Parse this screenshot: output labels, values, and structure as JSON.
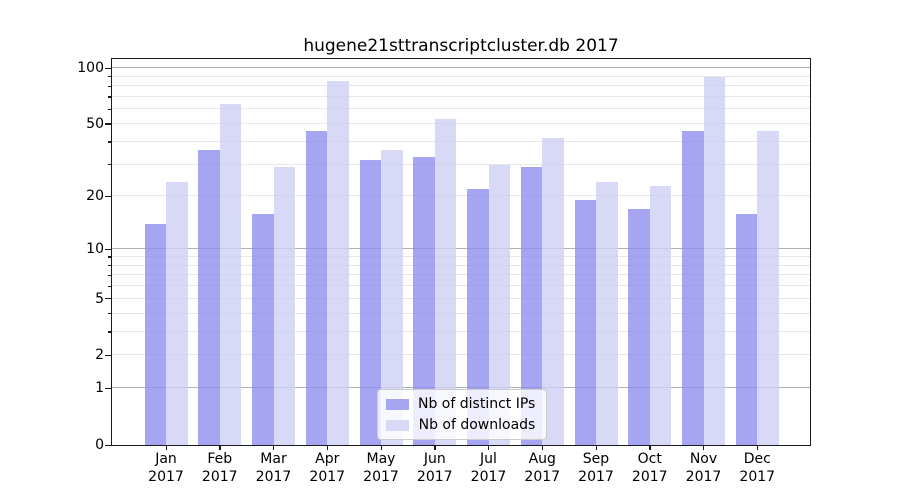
{
  "figure": {
    "title": "hugene21sttranscriptcluster.db 2017"
  },
  "chart_data": {
    "type": "bar",
    "title": "hugene21sttranscriptcluster.db 2017",
    "categories": [
      "Jan 2017",
      "Feb 2017",
      "Mar 2017",
      "Apr 2017",
      "May 2017",
      "Jun 2017",
      "Jul 2017",
      "Aug 2017",
      "Sep 2017",
      "Oct 2017",
      "Nov 2017",
      "Dec 2017"
    ],
    "series": [
      {
        "name": "Nb of distinct IPs",
        "color": "rgba(142,142,239,0.8)",
        "swatch_color": "#a5a5f2",
        "values": [
          14,
          36,
          16,
          46,
          32,
          33,
          22,
          29,
          19,
          17,
          46,
          16
        ]
      },
      {
        "name": "Nb of downloads",
        "color": "rgba(206,206,245,0.8)",
        "swatch_color": "#d8d8f7",
        "values": [
          24,
          64,
          29,
          85,
          36,
          53,
          30,
          42,
          24,
          23,
          90,
          46
        ]
      }
    ],
    "xlabel": "",
    "ylabel": "",
    "yscale": "log1p",
    "ylim": [
      0,
      112
    ],
    "yticks": [
      0,
      1,
      2,
      5,
      10,
      20,
      50,
      100
    ],
    "minor_yticks": [
      3,
      4,
      6,
      7,
      8,
      9,
      30,
      40,
      60,
      70,
      80,
      90
    ],
    "major_gridlines": [
      1,
      10,
      100
    ],
    "grid": true,
    "legend_position": "lower center"
  },
  "colors": {
    "background": "#ffffff",
    "bar_distinct_ips": "#a5a5f2",
    "bar_downloads": "#d8d8f7",
    "grid_major": "#b0b0b0",
    "grid_minor": "#e7e7e7",
    "spine": "#1a1a1a",
    "text": "#000000",
    "legend_border": "#cccccc"
  }
}
